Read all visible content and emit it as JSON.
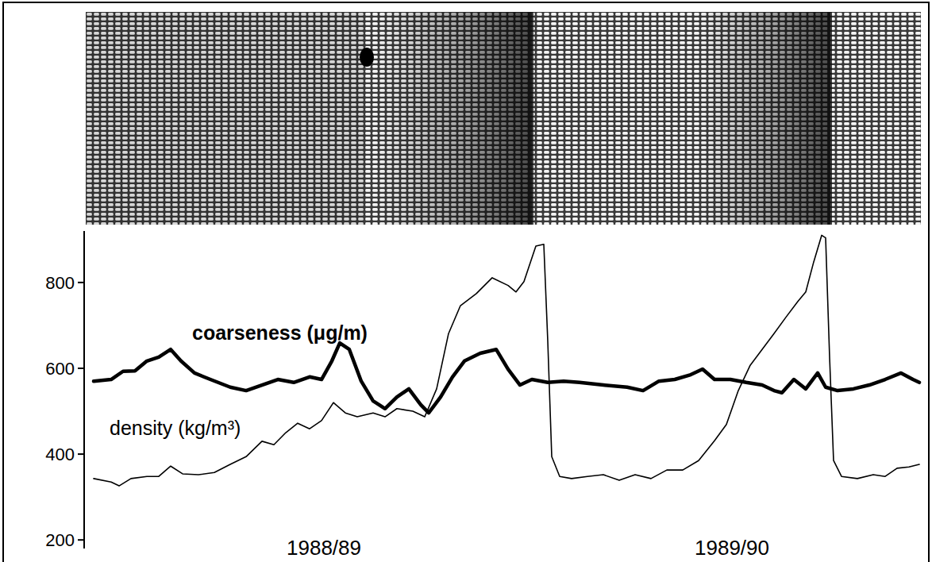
{
  "chart_data": {
    "type": "line",
    "xlim": [
      0,
      1050
    ],
    "ylim": [
      180,
      920
    ],
    "yticks": [
      200,
      400,
      600,
      800
    ],
    "tick_labels": "y",
    "grid": false,
    "series": [
      {
        "color": "#000000",
        "line_style": "solid",
        "x": [
          3,
          25,
          40,
          55,
          70,
          85,
          100,
          113,
          130,
          150,
          175,
          195,
          215,
          235,
          255,
          275,
          290,
          303,
          313,
          325,
          340,
          355,
          370,
          385,
          400,
          415,
          425,
          440,
          455,
          470,
          490,
          510,
          525,
          540,
          555,
          575,
          595,
          615,
          645,
          675,
          695,
          715,
          735,
          755,
          770,
          785,
          805,
          825,
          845,
          860,
          870,
          885,
          900,
          915,
          925,
          940,
          960,
          980,
          1000,
          1020,
          1035,
          1043
        ],
        "values": [
          570,
          574,
          593,
          594,
          617,
          626,
          644,
          617,
          589,
          574,
          556,
          548,
          561,
          574,
          567,
          580,
          574,
          617,
          659,
          644,
          570,
          524,
          506,
          533,
          552,
          515,
          496,
          533,
          580,
          617,
          635,
          644,
          598,
          561,
          574,
          567,
          570,
          567,
          561,
          556,
          548,
          570,
          574,
          585,
          598,
          574,
          574,
          567,
          561,
          548,
          543,
          574,
          552,
          589,
          556,
          548,
          552,
          561,
          574,
          589,
          574,
          567
        ]
      },
      {
        "color": "#000000",
        "line_style": "solid",
        "x": [
          3,
          25,
          35,
          50,
          70,
          85,
          100,
          115,
          135,
          155,
          175,
          195,
          215,
          230,
          245,
          260,
          275,
          290,
          305,
          320,
          335,
          355,
          370,
          385,
          405,
          420,
          435,
          450,
          465,
          485,
          505,
          525,
          535,
          545,
          560,
          570,
          575,
          580,
          590,
          605,
          625,
          645,
          665,
          685,
          705,
          725,
          745,
          765,
          785,
          800,
          815,
          830,
          845,
          860,
          875,
          890,
          900,
          910,
          920,
          925,
          930,
          935,
          945,
          965,
          985,
          1000,
          1015,
          1030,
          1043
        ],
        "values": [
          343,
          335,
          326,
          343,
          348,
          348,
          372,
          354,
          352,
          357,
          376,
          394,
          430,
          422,
          450,
          472,
          459,
          478,
          520,
          496,
          487,
          496,
          487,
          506,
          500,
          487,
          552,
          681,
          746,
          774,
          811,
          793,
          778,
          802,
          885,
          889,
          663,
          394,
          348,
          343,
          348,
          352,
          339,
          352,
          343,
          363,
          363,
          385,
          431,
          469,
          548,
          607,
          644,
          681,
          719,
          756,
          778,
          848,
          910,
          904,
          626,
          385,
          348,
          343,
          352,
          348,
          367,
          370,
          376
        ]
      }
    ],
    "annotations": [
      {
        "text": "coarseness (μg/m)",
        "x": 127,
        "y": 667
      },
      {
        "text": "density (kg/m³)",
        "x": 23,
        "y": 444
      },
      {
        "text": "1988/89",
        "x": 293,
        "y": 165
      },
      {
        "text": "1989/90",
        "x": 807,
        "y": 165
      }
    ]
  }
}
